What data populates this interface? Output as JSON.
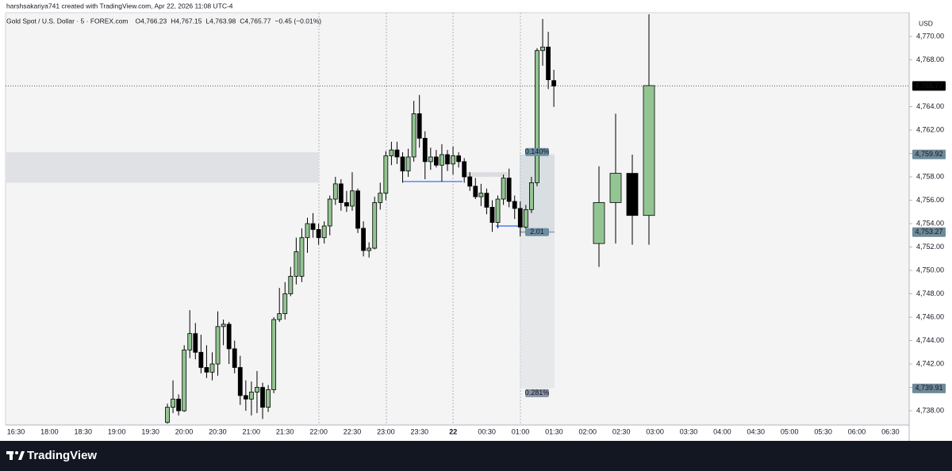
{
  "header": {
    "credit": "harshsakariya741 created with TradingView.com, Apr 22, 2026 11:08 UTC-4"
  },
  "legend": {
    "symbol": "Gold Spot / U.S. Dollar · 5 · FOREX.com",
    "ohlc": [
      "O4,766.23",
      "H4,767.15",
      "L4,763.98",
      "C4,765.77"
    ],
    "change": "−0.45 (−0.01%)"
  },
  "footer": {
    "brand": "TradingView"
  },
  "chart_data": {
    "type": "candlestick",
    "currency": "USD",
    "up_color": "#93c592",
    "down_color": "#000000",
    "ylim": [
      4736.85,
      4771.9
    ],
    "yticks": [
      {
        "value": 4738,
        "label": "4,738.00"
      },
      {
        "value": 4740,
        "label": "4,740.00"
      },
      {
        "value": 4742,
        "label": "4,742.00"
      },
      {
        "value": 4744,
        "label": "4,744.00"
      },
      {
        "value": 4746,
        "label": "4,746.00"
      },
      {
        "value": 4748,
        "label": "4,748.00"
      },
      {
        "value": 4750,
        "label": "4,750.00"
      },
      {
        "value": 4752,
        "label": "4,752.00"
      },
      {
        "value": 4754,
        "label": "4,754.00"
      },
      {
        "value": 4756,
        "label": "4,756.00"
      },
      {
        "value": 4758,
        "label": "4,758.00"
      },
      {
        "value": 4760,
        "label": "4,760.00"
      },
      {
        "value": 4762,
        "label": "4,762.00"
      },
      {
        "value": 4764,
        "label": "4,764.00"
      },
      {
        "value": 4768,
        "label": "4,768.00"
      },
      {
        "value": 4770,
        "label": "4,770.00"
      }
    ],
    "xticks": [
      "16:30",
      "18:00",
      "18:30",
      "19:00",
      "19:30",
      "20:00",
      "20:30",
      "21:00",
      "21:30",
      "22:00",
      "22:30",
      "23:00",
      "23:30",
      "22",
      "00:30",
      "01:00",
      "01:30",
      "02:00",
      "02:30",
      "03:00",
      "03:30",
      "04:00",
      "04:30",
      "05:00",
      "05:30",
      "06:00",
      "06:30"
    ],
    "grid": false,
    "open": [
      4737.0,
      4738.3,
      4739.0,
      4738.0,
      4743.2,
      4744.6,
      4743.0,
      4741.7,
      4741.3,
      4742.0,
      4745.2,
      4745.4,
      4743.3,
      4741.7,
      4739.3,
      4739.0,
      4739.6,
      4740.0,
      4738.3,
      4739.8,
      4745.8,
      4746.3,
      4748.0,
      4749.5,
      4749.5,
      4752.8,
      4754.0,
      4753.5,
      4752.8,
      4753.8,
      4756.1,
      4757.4,
      4755.8,
      4755.5,
      4756.8,
      4753.6,
      4751.7,
      4751.9,
      4755.8,
      4756.6,
      4759.8,
      4760.3,
      4759.7,
      4758.5,
      4759.7,
      4763.4,
      4761.3,
      4759.3,
      4759.7,
      4759.0,
      4759.9,
      4759.1,
      4759.8,
      4759.3,
      4758.0,
      4757.2,
      4756.3,
      4756.6,
      4755.4,
      4754.1,
      4756.1,
      4757.9,
      4755.9,
      4755.3,
      4753.7,
      4755.2,
      4757.5,
      4768.8,
      4769.1,
      4766.23
    ],
    "high": [
      4738.6,
      4740.6,
      4739.4,
      4743.6,
      4746.6,
      4745.5,
      4744.5,
      4743.6,
      4743.0,
      4746.5,
      4745.8,
      4745.6,
      4744.0,
      4742.7,
      4740.6,
      4740.5,
      4741.4,
      4740.4,
      4740.2,
      4746.0,
      4748.5,
      4749.0,
      4750.3,
      4752.8,
      4753.6,
      4754.5,
      4754.9,
      4754.0,
      4754.2,
      4756.4,
      4758.0,
      4757.8,
      4756.8,
      4758.4,
      4757.0,
      4754.2,
      4752.4,
      4756.3,
      4757.5,
      4760.2,
      4761.0,
      4761.0,
      4760.1,
      4760.4,
      4764.5,
      4765.0,
      4761.9,
      4760.5,
      4760.3,
      4760.8,
      4760.3,
      4760.6,
      4760.1,
      4759.6,
      4758.4,
      4757.9,
      4757.4,
      4757.0,
      4756.0,
      4756.4,
      4758.2,
      4758.7,
      4756.4,
      4755.9,
      4755.6,
      4758.0,
      4769.0,
      4771.5,
      4770.4,
      4767.15
    ],
    "low": [
      4736.9,
      4737.8,
      4737.6,
      4737.9,
      4742.5,
      4742.4,
      4741.2,
      4740.8,
      4740.6,
      4741.0,
      4743.6,
      4742.0,
      4741.2,
      4738.5,
      4738.0,
      4737.6,
      4737.8,
      4737.3,
      4737.9,
      4739.5,
      4745.6,
      4745.8,
      4747.8,
      4748.8,
      4749.0,
      4751.5,
      4752.8,
      4752.2,
      4752.3,
      4753.0,
      4755.6,
      4755.1,
      4755.0,
      4755.1,
      4753.2,
      4751.2,
      4751.1,
      4751.8,
      4755.2,
      4756.0,
      4759.0,
      4759.1,
      4757.5,
      4758.0,
      4759.3,
      4760.5,
      4757.8,
      4758.6,
      4758.8,
      4757.6,
      4758.5,
      4758.2,
      4758.8,
      4757.5,
      4756.8,
      4756.1,
      4755.5,
      4754.8,
      4753.3,
      4753.6,
      4755.6,
      4755.4,
      4754.4,
      4752.9,
      4753.3,
      4754.9,
      4757.2,
      4767.5,
      4765.5,
      4763.98
    ],
    "close": [
      4738.3,
      4739.0,
      4738.0,
      4743.2,
      4744.6,
      4743.0,
      4741.7,
      4741.3,
      4742.0,
      4745.2,
      4745.4,
      4743.3,
      4741.7,
      4739.3,
      4739.0,
      4739.6,
      4740.0,
      4738.3,
      4739.8,
      4745.8,
      4746.3,
      4748.0,
      4749.5,
      4751.6,
      4752.8,
      4754.0,
      4753.5,
      4752.8,
      4753.8,
      4756.1,
      4757.4,
      4755.8,
      4755.5,
      4756.8,
      4753.6,
      4751.7,
      4751.9,
      4755.8,
      4756.6,
      4759.8,
      4760.3,
      4759.7,
      4758.5,
      4759.7,
      4763.4,
      4761.3,
      4759.3,
      4759.7,
      4759.0,
      4759.9,
      4759.1,
      4759.8,
      4759.3,
      4758.0,
      4757.2,
      4756.3,
      4756.6,
      4755.4,
      4754.1,
      4756.1,
      4757.9,
      4755.9,
      4755.3,
      4753.7,
      4755.2,
      4757.5,
      4768.8,
      4769.1,
      4766.3,
      4765.77
    ],
    "htf": {
      "open": [
        4752.3,
        4755.8,
        4758.3,
        4754.7
      ],
      "high": [
        4758.9,
        4763.4,
        4759.9,
        4771.9
      ],
      "low": [
        4750.3,
        4752.3,
        4752.2,
        4752.2
      ],
      "close": [
        4755.8,
        4758.3,
        4754.7,
        4765.8
      ]
    },
    "last_price": {
      "value": 4765.77,
      "label": "4,765.77"
    },
    "zones": [
      {
        "top": 4760.1,
        "bottom": 4757.5
      },
      {
        "top": 4758.4,
        "bottom": 4758.0
      }
    ],
    "levels": [
      4757.6,
      4753.8
    ],
    "position": {
      "target": {
        "value": 4759.92,
        "label": "4,759.92"
      },
      "entry": {
        "value": 4753.27,
        "label": "4,753.27"
      },
      "stop": {
        "value": 4739.91,
        "label": "4,739.91"
      },
      "target_text": "0.140%",
      "ratio_text": "2.01",
      "stop_text": "0.281%"
    }
  }
}
